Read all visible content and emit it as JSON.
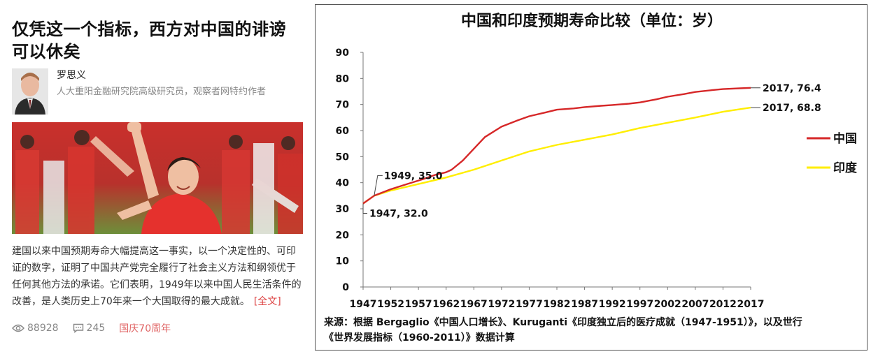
{
  "article": {
    "title_line1": "仅凭这一个指标，西方对中国的诽谤",
    "title_line2": "可以休矣",
    "author_name": "罗思义",
    "author_desc": "人大重阳金融研究院高级研究员，观察者网特约作者",
    "summary": "建国以来中国预期寿命大幅提高这一事实，以一个决定性的、可印证的数字，证明了中国共产党完全履行了社会主义方法和纲领优于任何其他方法的承诺。它们表明，1949年以来中国人民生活条件的改善，是人类历史上70年来一个大国取得的最大成就。",
    "more_link": "[全文]",
    "views": "88928",
    "comments": "245",
    "tag": "国庆70周年",
    "icons": {
      "views": "eye-icon",
      "comments": "comment-icon"
    },
    "colors": {
      "tag": "#e06666",
      "more": "#dd4444"
    }
  },
  "chart_data": {
    "type": "line",
    "title": "中国和印度预期寿命比较（单位：岁）",
    "x_ticks": [
      "1947",
      "1952",
      "1957",
      "1962",
      "1967",
      "1972",
      "1977",
      "1982",
      "1987",
      "1992",
      "1997",
      "2002",
      "2007",
      "2012",
      "2017"
    ],
    "y_ticks": [
      "0",
      "10",
      "20",
      "30",
      "40",
      "50",
      "60",
      "70",
      "80",
      "90"
    ],
    "xlim": [
      1947,
      2017
    ],
    "ylim": [
      0,
      90
    ],
    "grid": false,
    "legend_position": "right",
    "series": [
      {
        "name": "中国",
        "color": "#d62728",
        "x": [
          1947,
          1949,
          1952,
          1955,
          1958,
          1960,
          1962,
          1963,
          1965,
          1967,
          1969,
          1972,
          1975,
          1977,
          1980,
          1982,
          1985,
          1987,
          1990,
          1992,
          1995,
          1997,
          2000,
          2002,
          2005,
          2007,
          2010,
          2012,
          2015,
          2017
        ],
        "y": [
          32.0,
          35.0,
          37.5,
          39.5,
          41.5,
          43.0,
          44.0,
          45.0,
          48.5,
          53.0,
          57.5,
          61.5,
          64.0,
          65.5,
          67.0,
          68.0,
          68.5,
          69.0,
          69.5,
          69.8,
          70.3,
          70.8,
          72.0,
          73.0,
          74.0,
          74.8,
          75.5,
          75.9,
          76.2,
          76.4
        ]
      },
      {
        "name": "印度",
        "color": "#ffee00",
        "x": [
          1947,
          1949,
          1952,
          1955,
          1958,
          1962,
          1967,
          1972,
          1977,
          1982,
          1987,
          1992,
          1997,
          2002,
          2007,
          2012,
          2017
        ],
        "y": [
          32.0,
          35.0,
          37.0,
          38.5,
          40.0,
          42.0,
          45.0,
          48.5,
          52.0,
          54.5,
          56.5,
          58.5,
          61.0,
          63.0,
          65.0,
          67.2,
          68.8
        ]
      }
    ],
    "annotations": [
      {
        "text": "1949, 35.0",
        "x": 1949,
        "y": 35.0
      },
      {
        "text": "1947, 32.0",
        "x": 1947,
        "y": 32.0
      },
      {
        "text": "2017, 76.4",
        "x": 2017,
        "y": 76.4
      },
      {
        "text": "2017, 68.8",
        "x": 2017,
        "y": 68.8
      }
    ],
    "source_line1": "来源：根据 Bergaglio《中国人口增长》、Kuruganti《印度独立后的医疗成就（1947-1951）》，以及世行",
    "source_line2": "《世界发展指标（1960-2011）》数据计算"
  }
}
